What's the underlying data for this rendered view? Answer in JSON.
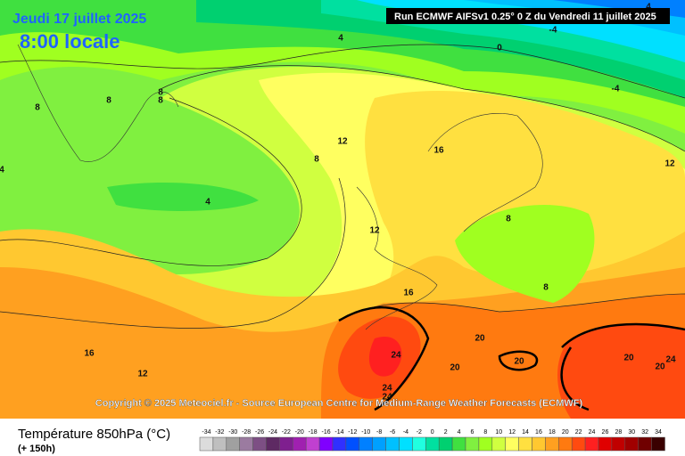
{
  "header": {
    "date": "Jeudi 17 juillet 2025",
    "time": "8:00 locale",
    "run": "Run ECMWF AIFSv1 0.25° 0 Z du Vendredi 11 juillet 2025"
  },
  "copyright": "Copyright © 2025 Meteociel.fr - Source European Centre for Medium-Range Weather Forecasts (ECMWF)",
  "contour_labels": [
    4,
    -4,
    4,
    0,
    -4,
    8,
    8,
    8,
    8,
    4,
    12,
    16,
    8,
    12,
    12,
    4,
    8,
    16,
    20,
    24,
    20,
    20,
    20,
    20,
    24,
    24,
    24,
    16,
    12,
    8
  ],
  "legend": {
    "title": "Température 850hPa (°C)",
    "subtitle": "(+ 150h)",
    "ticks": [
      -34,
      -32,
      -30,
      -28,
      -26,
      -24,
      -22,
      -20,
      -18,
      -16,
      -14,
      -12,
      -10,
      -8,
      -6,
      -4,
      -2,
      0,
      2,
      4,
      6,
      8,
      10,
      12,
      14,
      16,
      18,
      20,
      22,
      24,
      26,
      28,
      30,
      32,
      34
    ],
    "colors": [
      "#dcdcdc",
      "#bfbfbf",
      "#a0a0a0",
      "#9b7ba0",
      "#7d4f84",
      "#5e2a63",
      "#7f1f8f",
      "#a020b0",
      "#c040d0",
      "#8000ff",
      "#3030ff",
      "#0050ff",
      "#0080ff",
      "#00a0ff",
      "#00c0ff",
      "#00e0ff",
      "#20ffe0",
      "#00e0a0",
      "#00d070",
      "#40e040",
      "#80f040",
      "#a0ff20",
      "#d0ff40",
      "#ffff60",
      "#ffe040",
      "#ffc830",
      "#ffa020",
      "#ff7a10",
      "#ff4a10",
      "#ff2020",
      "#e00000",
      "#c00000",
      "#a00000",
      "#700000",
      "#3a0000"
    ]
  }
}
